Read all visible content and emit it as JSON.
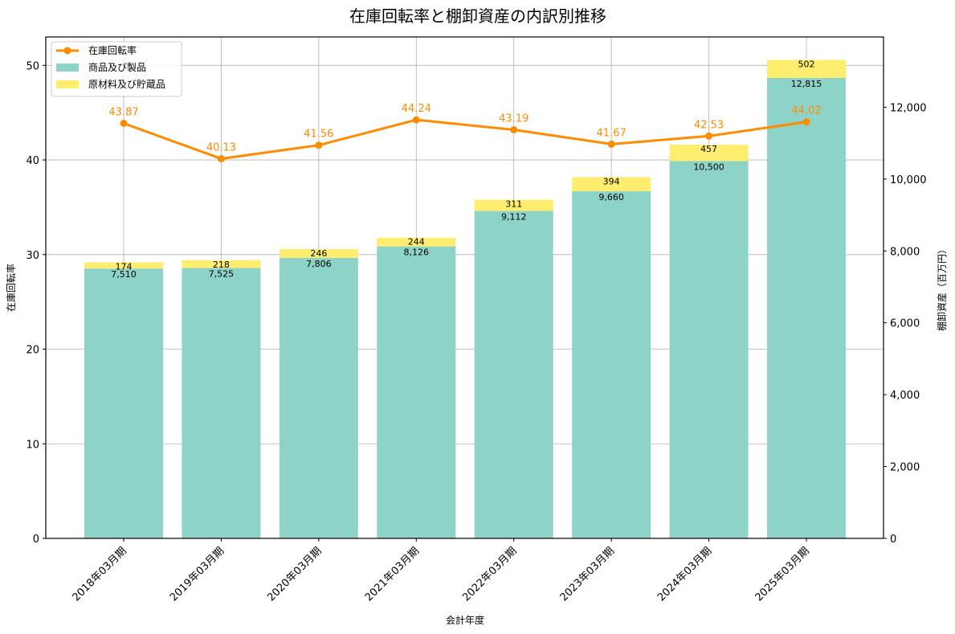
{
  "chart_data": {
    "type": "bar+line",
    "title": "在庫回転率と棚卸資産の内訳別推移",
    "xlabel": "会計年度",
    "ylabel_left": "在庫回転率",
    "ylabel_right": "棚卸資産（百万円）",
    "categories": [
      "2018年03月期",
      "2019年03月期",
      "2020年03月期",
      "2021年03月期",
      "2022年03月期",
      "2023年03月期",
      "2024年03月期",
      "2025年03月期"
    ],
    "series": [
      {
        "name": "商品及び製品",
        "type": "stacked-bar",
        "axis": "right",
        "color": "#8dd3c7",
        "values": [
          7510,
          7525,
          7806,
          8126,
          9112,
          9660,
          10500,
          12815
        ],
        "labels": [
          "7,510",
          "7,525",
          "7,806",
          "8,126",
          "9,112",
          "9,660",
          "10,500",
          "12,815"
        ]
      },
      {
        "name": "原材料及び貯蔵品",
        "type": "stacked-bar",
        "axis": "right",
        "color": "#ffed6f",
        "values": [
          174,
          218,
          246,
          244,
          311,
          394,
          457,
          502
        ],
        "labels": [
          "174",
          "218",
          "246",
          "244",
          "311",
          "394",
          "457",
          "502"
        ]
      },
      {
        "name": "在庫回転率",
        "type": "line",
        "axis": "left",
        "color": "#ff8c00",
        "values": [
          43.87,
          40.13,
          41.56,
          44.24,
          43.19,
          41.67,
          42.53,
          44.02
        ],
        "labels": [
          "43.87",
          "40.13",
          "41.56",
          "44.24",
          "43.19",
          "41.67",
          "42.53",
          "44.02"
        ]
      }
    ],
    "ylim_left": [
      0,
      53
    ],
    "yticks_left": [
      "0",
      "10",
      "20",
      "30",
      "40",
      "50"
    ],
    "ylim_right": [
      0,
      13955
    ],
    "yticks_right": [
      "0",
      "2,000",
      "4,000",
      "6,000",
      "8,000",
      "10,000",
      "12,000"
    ],
    "grid": true,
    "legend_position": "upper left",
    "legend": [
      "在庫回転率",
      "商品及び製品",
      "原材料及び貯蔵品"
    ]
  }
}
